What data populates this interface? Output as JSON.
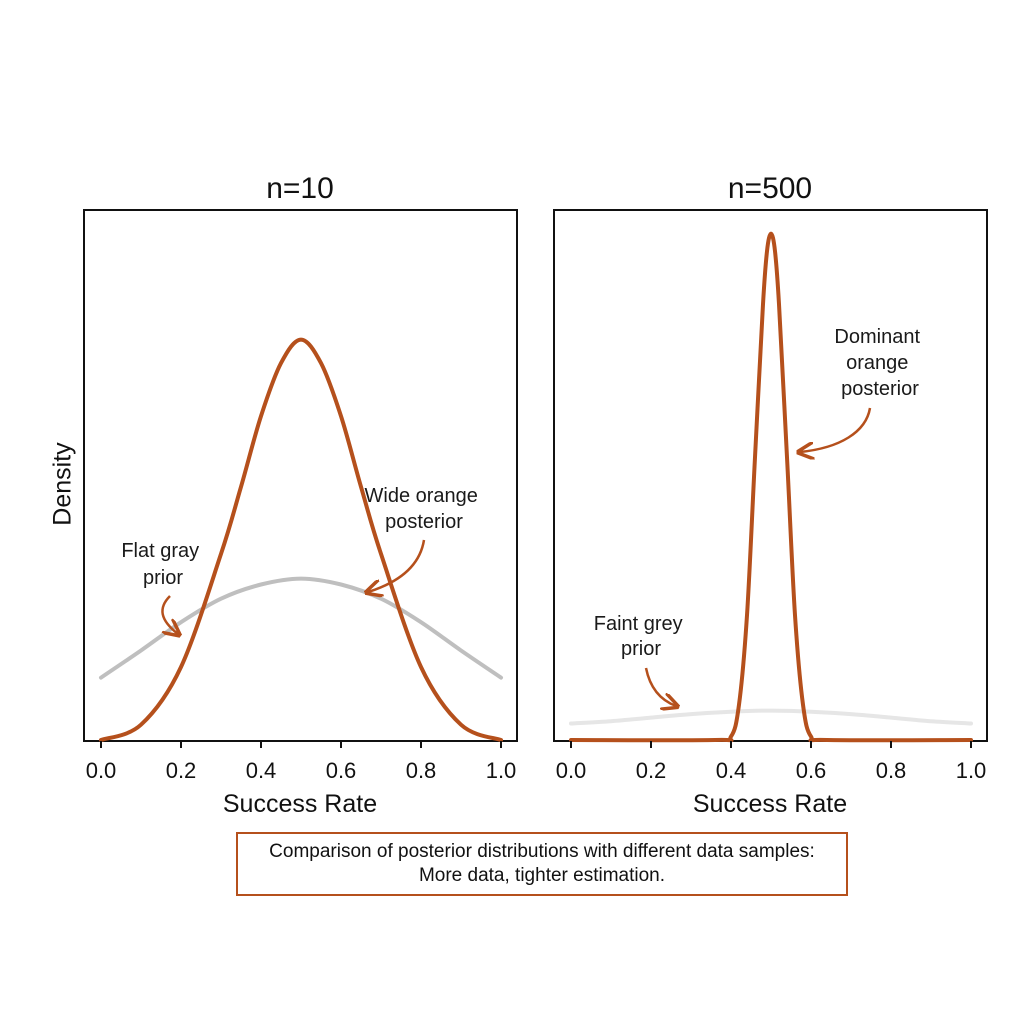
{
  "chart_data": [
    {
      "type": "line",
      "title": "n=10",
      "xlabel": "Success Rate",
      "ylabel": "Density",
      "xlim": [
        0.0,
        1.0
      ],
      "ylim": [
        0,
        4.5
      ],
      "x_ticks": [
        "0.0",
        "0.2",
        "0.4",
        "0.6",
        "0.8",
        "1.0"
      ],
      "y_ticks_shown": false,
      "series": [
        {
          "role": "prior",
          "color": "#bfbfbf",
          "opacity": 1.0,
          "x": [
            0.0,
            0.1,
            0.2,
            0.3,
            0.4,
            0.5,
            0.6,
            0.7,
            0.8,
            0.9,
            1.0
          ],
          "y": [
            0.53,
            0.76,
            1.0,
            1.2,
            1.32,
            1.37,
            1.32,
            1.2,
            1.0,
            0.76,
            0.53
          ]
        },
        {
          "role": "posterior",
          "color": "#b5501c",
          "opacity": 1.0,
          "x": [
            0.0,
            0.1,
            0.2,
            0.3,
            0.35,
            0.4,
            0.45,
            0.5,
            0.55,
            0.6,
            0.65,
            0.7,
            0.8,
            0.9,
            1.0
          ],
          "y": [
            0.0,
            0.13,
            0.62,
            1.58,
            2.15,
            2.75,
            3.2,
            3.4,
            3.2,
            2.75,
            2.15,
            1.58,
            0.62,
            0.13,
            0.0
          ]
        }
      ],
      "annotations": [
        {
          "text": [
            "Flat gray",
            "prior"
          ],
          "color": "#b5501c"
        },
        {
          "text": [
            "Wide orange",
            "posterior"
          ],
          "color": "#b5501c"
        }
      ],
      "grid": false
    },
    {
      "type": "line",
      "title": "n=500",
      "xlabel": "Success Rate",
      "xlim": [
        0.0,
        1.0
      ],
      "ylim": [
        0,
        4.5
      ],
      "x_ticks": [
        "0.0",
        "0.2",
        "0.4",
        "0.6",
        "0.8",
        "1.0"
      ],
      "y_ticks_shown": false,
      "series": [
        {
          "role": "prior",
          "color": "#d9d9d9",
          "opacity": 0.65,
          "x": [
            0.0,
            0.1,
            0.2,
            0.3,
            0.4,
            0.5,
            0.6,
            0.7,
            0.8,
            0.9,
            1.0
          ],
          "y": [
            0.14,
            0.16,
            0.19,
            0.22,
            0.24,
            0.25,
            0.24,
            0.22,
            0.19,
            0.16,
            0.14
          ]
        },
        {
          "role": "posterior",
          "color": "#b5501c",
          "opacity": 1.0,
          "x": [
            0.0,
            0.36,
            0.4,
            0.42,
            0.44,
            0.46,
            0.48,
            0.49,
            0.5,
            0.51,
            0.52,
            0.54,
            0.56,
            0.58,
            0.6,
            0.64,
            1.0
          ],
          "y": [
            0.0,
            0.0,
            0.03,
            0.3,
            1.06,
            2.4,
            3.7,
            4.15,
            4.3,
            4.15,
            3.7,
            2.4,
            1.06,
            0.3,
            0.03,
            0.0,
            0.0
          ]
        }
      ],
      "annotations": [
        {
          "text": [
            "Faint grey",
            "prior"
          ],
          "color": "#b5501c"
        },
        {
          "text": [
            "Dominant",
            "orange",
            "posterior"
          ],
          "color": "#b5501c"
        }
      ],
      "grid": false
    }
  ],
  "caption": {
    "line1": "Comparison of posterior distributions with different data samples:",
    "line2": "More data, tighter estimation."
  }
}
